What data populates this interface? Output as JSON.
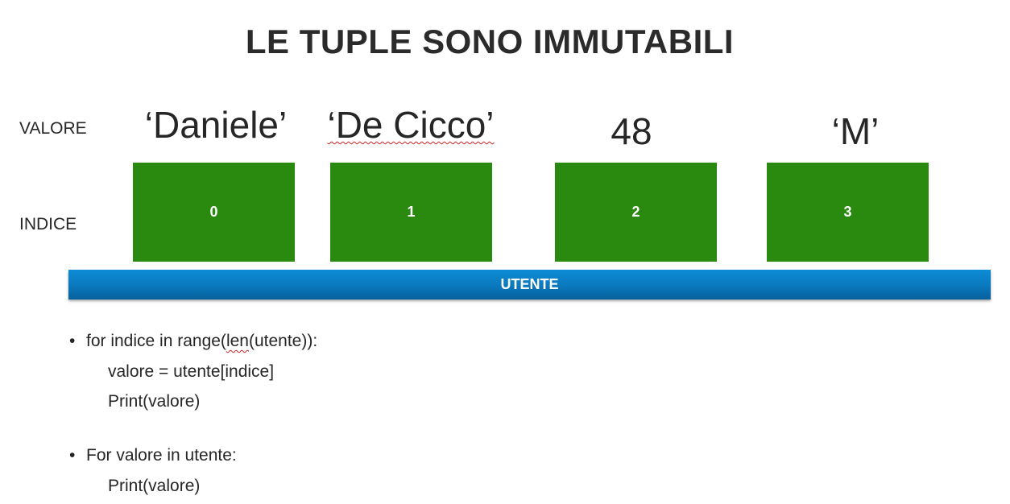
{
  "slide": {
    "title": "LE TUPLE SONO IMMUTABILI",
    "labels": {
      "valore": "VALORE",
      "indice": "INDICE"
    },
    "values": [
      "‘Daniele’",
      "‘De Cicco’",
      "48",
      "‘M’"
    ],
    "indices": [
      "0",
      "1",
      "2",
      "3"
    ],
    "tuple_name": "UTENTE",
    "colors": {
      "index_box": "#2a8a10",
      "tuple_bar": "#0a78bd",
      "spellcheck": "#d62020"
    },
    "code": {
      "bullet_symbol": "•",
      "loop1": {
        "head_pre": "for indice in range(",
        "head_len": "len",
        "head_post": "(utente)):",
        "line2": "valore = utente[indice]",
        "line3": "Print(valore)"
      },
      "loop2": {
        "head": "For valore in utente:",
        "line2": "Print(valore)"
      }
    }
  }
}
